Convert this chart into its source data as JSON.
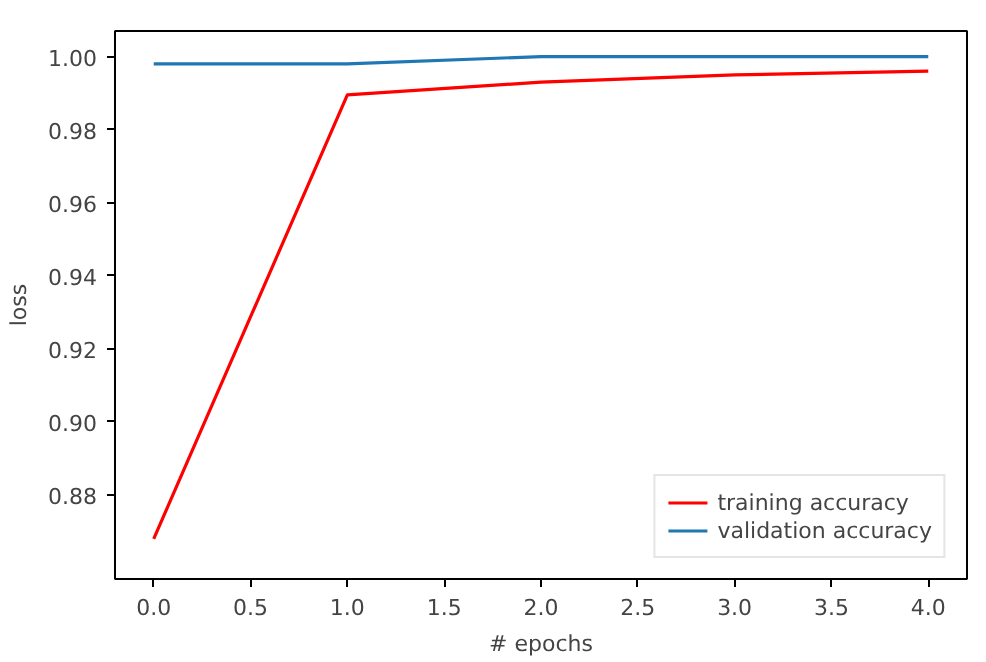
{
  "chart_data": {
    "type": "line",
    "xlabel": "# epochs",
    "ylabel": "loss",
    "x": [
      0,
      1,
      2,
      3,
      4
    ],
    "series": [
      {
        "name": "training accuracy",
        "color": "#ff0000",
        "values": [
          0.868,
          0.9895,
          0.993,
          0.995,
          0.996
        ]
      },
      {
        "name": "validation accuracy",
        "color": "#1f77b4",
        "values": [
          0.998,
          0.998,
          1.0,
          1.0,
          1.0
        ]
      }
    ],
    "xlim": [
      -0.2,
      4.2
    ],
    "ylim": [
      0.857,
      1.007
    ],
    "xticks": [
      {
        "value": 0,
        "label": "0.0"
      },
      {
        "value": 0.5,
        "label": "0.5"
      },
      {
        "value": 1,
        "label": "1.0"
      },
      {
        "value": 1.5,
        "label": "1.5"
      },
      {
        "value": 2,
        "label": "2.0"
      },
      {
        "value": 2.5,
        "label": "2.5"
      },
      {
        "value": 3,
        "label": "3.0"
      },
      {
        "value": 3.5,
        "label": "3.5"
      },
      {
        "value": 4,
        "label": "4.0"
      }
    ],
    "yticks": [
      {
        "value": 0.88,
        "label": "0.88"
      },
      {
        "value": 0.9,
        "label": "0.90"
      },
      {
        "value": 0.92,
        "label": "0.92"
      },
      {
        "value": 0.94,
        "label": "0.94"
      },
      {
        "value": 0.96,
        "label": "0.96"
      },
      {
        "value": 0.98,
        "label": "0.98"
      },
      {
        "value": 1.0,
        "label": "1.00"
      }
    ],
    "legend": "bottom right",
    "grid": false
  }
}
